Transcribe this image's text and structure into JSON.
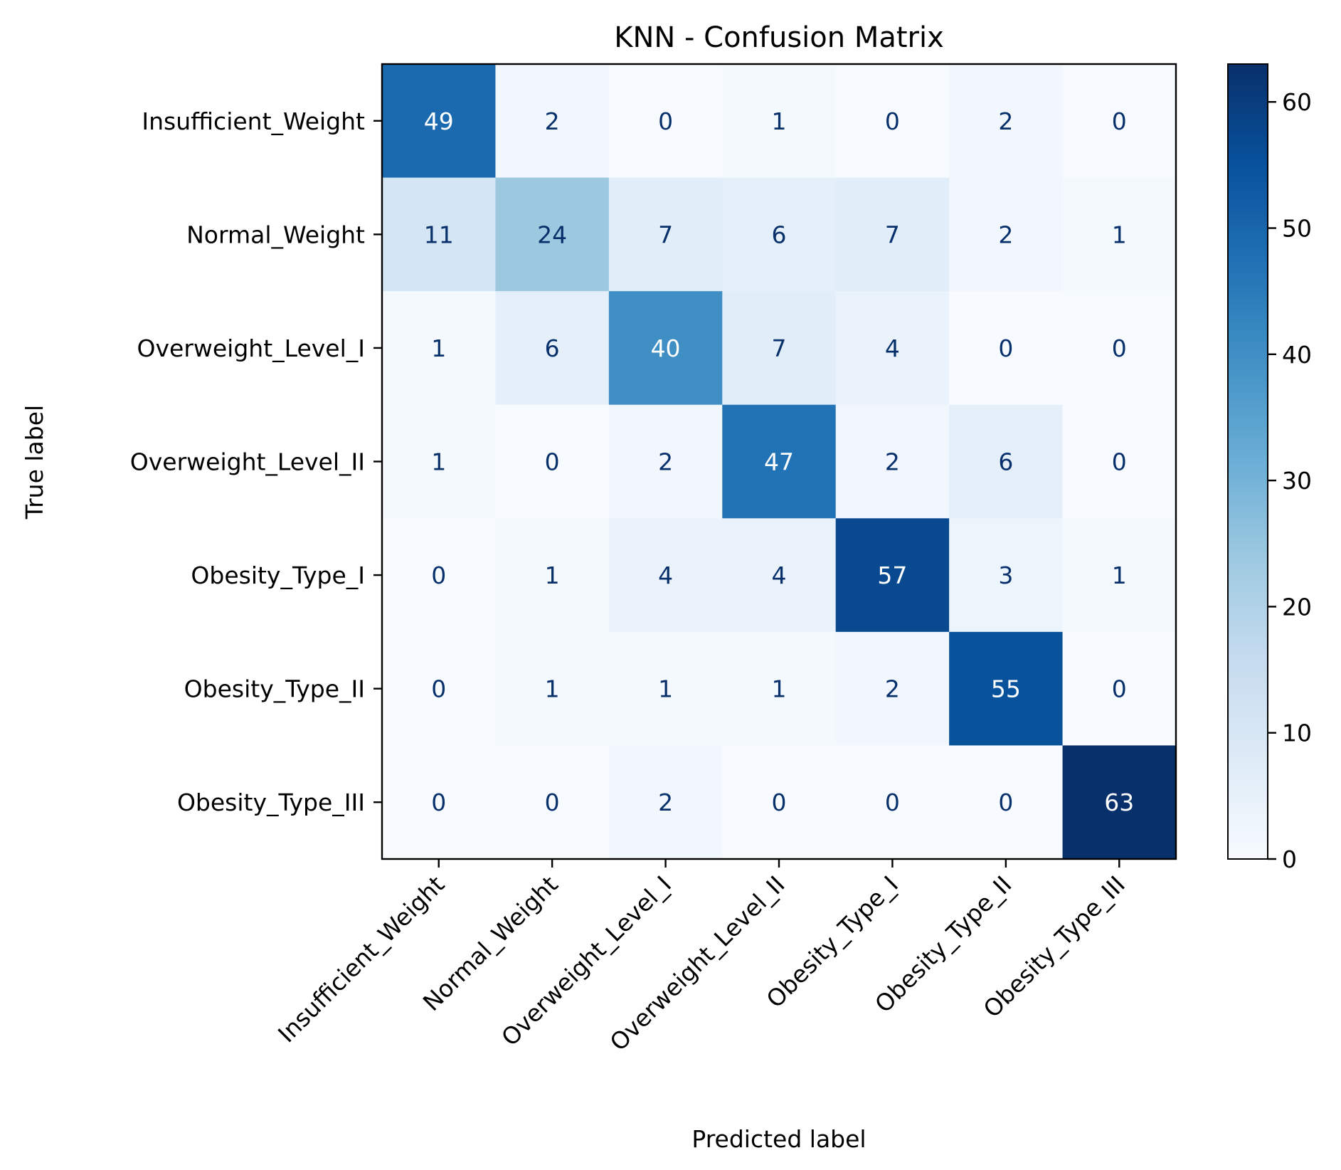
{
  "chart_data": {
    "type": "heatmap",
    "title": "KNN - Confusion Matrix",
    "xlabel": "Predicted label",
    "ylabel": "True label",
    "x_categories": [
      "Insufficient_Weight",
      "Normal_Weight",
      "Overweight_Level_I",
      "Overweight_Level_II",
      "Obesity_Type_I",
      "Obesity_Type_II",
      "Obesity_Type_III"
    ],
    "y_categories": [
      "Insufficient_Weight",
      "Normal_Weight",
      "Overweight_Level_I",
      "Overweight_Level_II",
      "Obesity_Type_I",
      "Obesity_Type_II",
      "Obesity_Type_III"
    ],
    "values": [
      [
        49,
        2,
        0,
        1,
        0,
        2,
        0
      ],
      [
        11,
        24,
        7,
        6,
        7,
        2,
        1
      ],
      [
        1,
        6,
        40,
        7,
        4,
        0,
        0
      ],
      [
        1,
        0,
        2,
        47,
        2,
        6,
        0
      ],
      [
        0,
        1,
        4,
        4,
        57,
        3,
        1
      ],
      [
        0,
        1,
        1,
        1,
        2,
        55,
        0
      ],
      [
        0,
        0,
        2,
        0,
        0,
        0,
        63
      ]
    ],
    "colormap": "Blues",
    "color_range": [
      0,
      63
    ],
    "colorbar_ticks": [
      0,
      10,
      20,
      30,
      40,
      50,
      60
    ],
    "colorbar_tick_labels": [
      "0",
      "10",
      "20",
      "30",
      "40",
      "50",
      "60"
    ],
    "grid": false,
    "colorbar_position": "right"
  }
}
